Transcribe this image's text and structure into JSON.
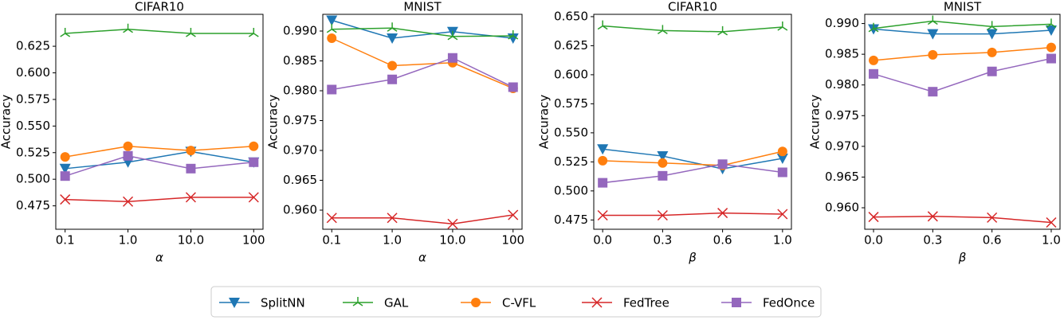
{
  "legend": [
    {
      "name": "SplitNN",
      "color": "#1f77b4",
      "marker": "v"
    },
    {
      "name": "GAL",
      "color": "#2ca02c",
      "marker": "tri"
    },
    {
      "name": "C-VFL",
      "color": "#ff7f0e",
      "marker": "o"
    },
    {
      "name": "FedTree",
      "color": "#d62728",
      "marker": "x"
    },
    {
      "name": "FedOnce",
      "color": "#9467bd",
      "marker": "s"
    }
  ],
  "chart_data": [
    {
      "type": "line",
      "title": "CIFAR10",
      "x_label": "α",
      "y_label": "Accuracy",
      "categories": [
        "0.1",
        "1.0",
        "10.0",
        "100"
      ],
      "ylim": [
        0.453,
        0.655
      ],
      "yticks": [
        0.475,
        {
          "value": 0.5,
          "label": "0.500"
        },
        0.525,
        {
          "value": 0.55,
          "label": "0.550"
        },
        0.575,
        {
          "value": 0.6,
          "label": "0.600"
        },
        0.625
      ],
      "series": [
        {
          "values": [
            0.51,
            0.516,
            0.526,
            0.516
          ]
        },
        {
          "values": [
            0.637,
            0.641,
            0.637,
            0.637
          ]
        },
        {
          "values": [
            0.521,
            0.531,
            0.527,
            0.531
          ]
        },
        {
          "values": [
            0.481,
            0.479,
            0.483,
            0.483
          ]
        },
        {
          "values": [
            0.503,
            0.522,
            0.51,
            0.516
          ]
        }
      ]
    },
    {
      "type": "line",
      "title": "MNIST",
      "x_label": "α",
      "y_label": "Accuracy",
      "categories": [
        "0.1",
        "1.0",
        "10.0",
        "100"
      ],
      "ylim": [
        0.9568,
        0.9928
      ],
      "yticks": [
        {
          "value": 0.96,
          "label": "0.960"
        },
        0.965,
        {
          "value": 0.97,
          "label": "0.970"
        },
        0.975,
        {
          "value": 0.98,
          "label": "0.980"
        },
        0.985,
        {
          "value": 0.99,
          "label": "0.990"
        }
      ],
      "series": [
        {
          "values": [
            0.9918,
            0.9888,
            0.9899,
            0.9888
          ]
        },
        {
          "values": [
            0.9903,
            0.9905,
            0.9891,
            0.9892
          ]
        },
        {
          "values": [
            0.9888,
            0.9842,
            0.9847,
            0.9804
          ]
        },
        {
          "values": [
            0.9587,
            0.9587,
            0.9577,
            0.9592
          ]
        },
        {
          "values": [
            0.9802,
            0.9819,
            0.9855,
            0.9806
          ]
        }
      ]
    },
    {
      "type": "line",
      "title": "CIFAR10",
      "x_label": "β",
      "y_label": "Accuracy",
      "categories": [
        "0.0",
        "0.3",
        "0.6",
        "1.0"
      ],
      "ylim": [
        0.467,
        0.652
      ],
      "yticks": [
        0.475,
        {
          "value": 0.5,
          "label": "0.500"
        },
        0.525,
        {
          "value": 0.55,
          "label": "0.550"
        },
        0.575,
        {
          "value": 0.6,
          "label": "0.600"
        },
        0.625,
        {
          "value": 0.65,
          "label": "0.650"
        }
      ],
      "series": [
        {
          "values": [
            0.536,
            0.53,
            0.519,
            0.528
          ]
        },
        {
          "values": [
            0.642,
            0.638,
            0.637,
            0.641
          ]
        },
        {
          "values": [
            0.526,
            0.524,
            0.522,
            0.534
          ]
        },
        {
          "values": [
            0.479,
            0.479,
            0.481,
            0.48
          ]
        },
        {
          "values": [
            0.507,
            0.513,
            0.523,
            0.516
          ]
        }
      ]
    },
    {
      "type": "line",
      "title": "MNIST",
      "x_label": "β",
      "y_label": "Accuracy",
      "categories": [
        "0.0",
        "0.3",
        "0.6",
        "1.0"
      ],
      "ylim": [
        0.9565,
        0.9915
      ],
      "yticks": [
        {
          "value": 0.96,
          "label": "0.960"
        },
        0.965,
        {
          "value": 0.97,
          "label": "0.970"
        },
        0.975,
        {
          "value": 0.98,
          "label": "0.980"
        },
        0.985,
        {
          "value": 0.99,
          "label": "0.990"
        }
      ],
      "series": [
        {
          "values": [
            0.9891,
            0.9883,
            0.9883,
            0.9889
          ]
        },
        {
          "values": [
            0.9892,
            0.9904,
            0.9895,
            0.9899
          ]
        },
        {
          "values": [
            0.984,
            0.9849,
            0.9853,
            0.9861
          ]
        },
        {
          "values": [
            0.9585,
            0.9586,
            0.9584,
            0.9576
          ]
        },
        {
          "values": [
            0.9818,
            0.9789,
            0.9822,
            0.9843
          ]
        }
      ]
    }
  ]
}
